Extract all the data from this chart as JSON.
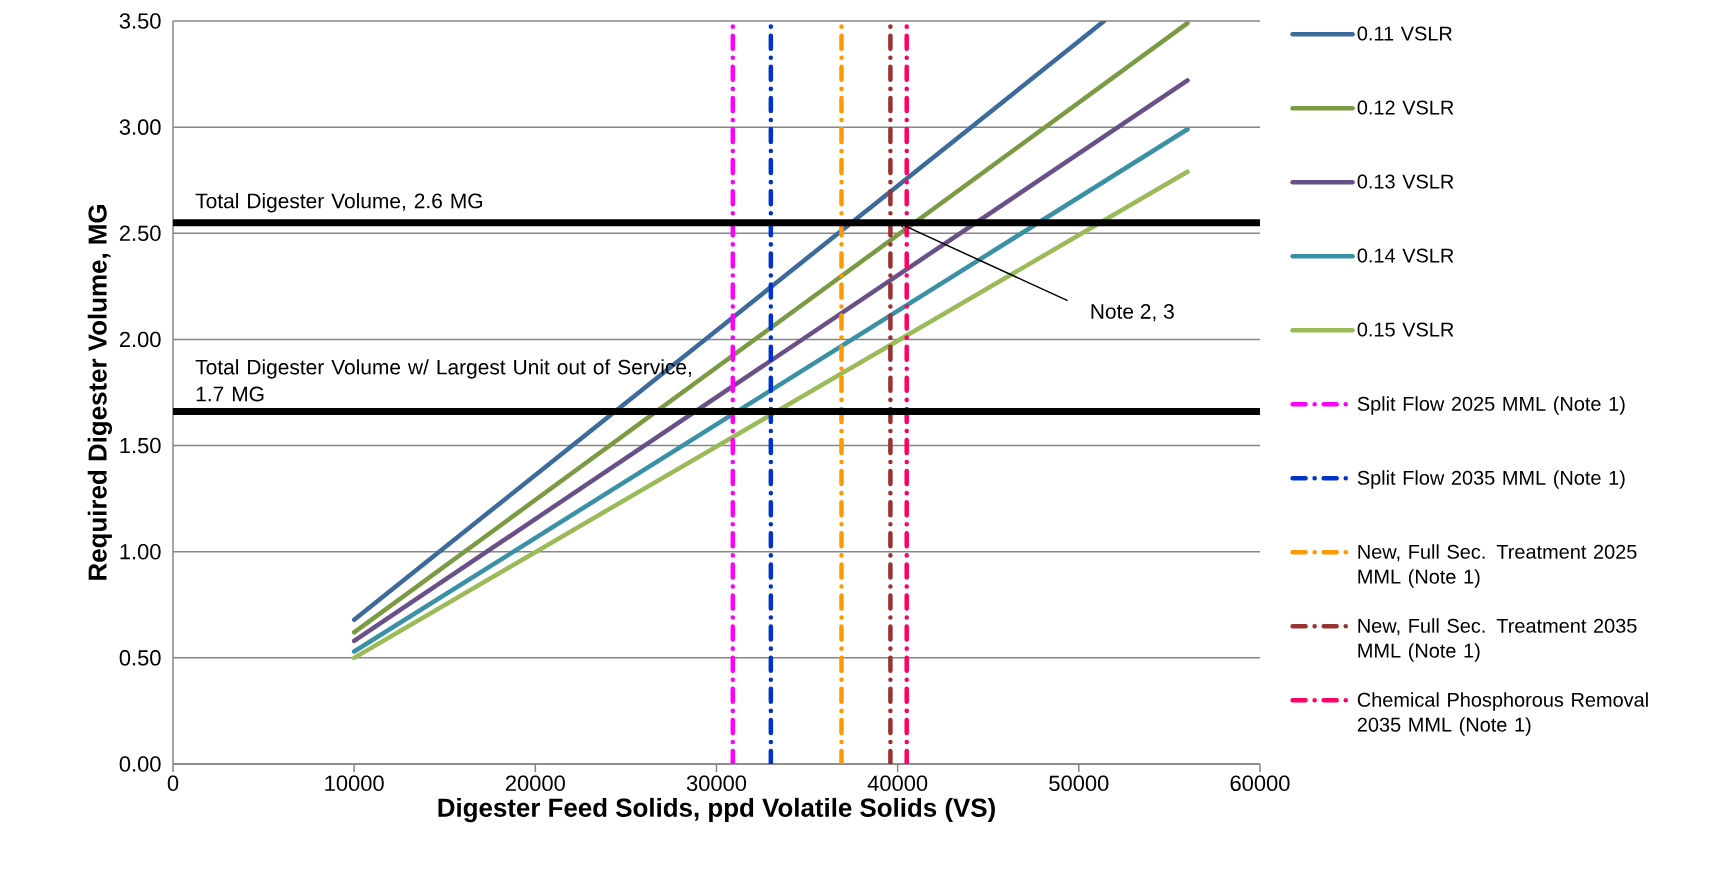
{
  "chart_data": {
    "type": "line",
    "xlabel": "Digester Feed Solids, ppd Volatile Solids (VS)",
    "ylabel": "Required Digester Volume, MG",
    "xlim": [
      0,
      60000
    ],
    "ylim": [
      0,
      3.5
    ],
    "xticks": [
      0,
      10000,
      20000,
      30000,
      40000,
      50000,
      60000
    ],
    "yticks": [
      {
        "value": 0,
        "label": "0.00"
      },
      {
        "value": 0.5,
        "label": "0.50"
      },
      {
        "value": 1,
        "label": "1.00"
      },
      {
        "value": 1.5,
        "label": "1.50"
      },
      {
        "value": 2,
        "label": "2.00"
      },
      {
        "value": 2.5,
        "label": "2.50"
      },
      {
        "value": 3,
        "label": "3.00"
      },
      {
        "value": 3.5,
        "label": "3.50"
      }
    ],
    "grid": "y",
    "legend": "right",
    "line_style": "solid",
    "series": [
      {
        "name": "0.11 VSLR",
        "color": "#3c6a9b",
        "x": [
          10000,
          51400
        ],
        "values": [
          0.68,
          3.5
        ]
      },
      {
        "name": "0.12 VSLR",
        "color": "#7a9a43",
        "x": [
          10000,
          56000
        ],
        "values": [
          0.62,
          3.49
        ]
      },
      {
        "name": "0.13 VSLR",
        "color": "#6a5088",
        "x": [
          10000,
          56000
        ],
        "values": [
          0.58,
          3.22
        ]
      },
      {
        "name": "0.14 VSLR",
        "color": "#3a91a6",
        "x": [
          10000,
          56000
        ],
        "values": [
          0.53,
          2.99
        ]
      },
      {
        "name": "0.15 VSLR",
        "color": "#9bbb59",
        "x": [
          10000,
          56000
        ],
        "values": [
          0.5,
          2.79
        ]
      },
      {
        "name": "Split Flow 2025 MML (Note 1)",
        "color": "#ff00ff",
        "line_style": "dashed",
        "x": [
          30900,
          30900
        ],
        "values": [
          0,
          3.5
        ]
      },
      {
        "name": "Split Flow 2035 MML (Note 1)",
        "color": "#0033cc",
        "line_style": "dashed",
        "x": [
          33000,
          33000
        ],
        "values": [
          0,
          3.5
        ]
      },
      {
        "name": "New, Full Sec. Treatment 2025 MML (Note 1)",
        "color": "#ff9900",
        "line_style": "dashed",
        "x": [
          36900,
          36900
        ],
        "values": [
          0,
          3.5
        ]
      },
      {
        "name": "New, Full Sec. Treatment 2035 MML (Note 1)",
        "color": "#993333",
        "line_style": "dashed",
        "x": [
          39600,
          39600
        ],
        "values": [
          0,
          3.5
        ]
      },
      {
        "name": "Chemical Phosphorous Removal 2035 MML (Note 1)",
        "color": "#ff0066",
        "line_style": "dashed",
        "x": [
          40500,
          40500
        ],
        "values": [
          0,
          3.5
        ]
      }
    ],
    "ref_lines": [
      {
        "axis": "y",
        "value": 2.55,
        "label": "Total Digester Volume, 2.6 MG",
        "color": "#000000"
      },
      {
        "axis": "y",
        "value": 1.66,
        "label": "Total Digester Volume w/ Largest Unit out of Service, 1.7 MG",
        "color": "#000000"
      }
    ],
    "annotations": [
      {
        "text": "Note 2, 3",
        "x": 40000,
        "y": 2.55
      }
    ]
  }
}
